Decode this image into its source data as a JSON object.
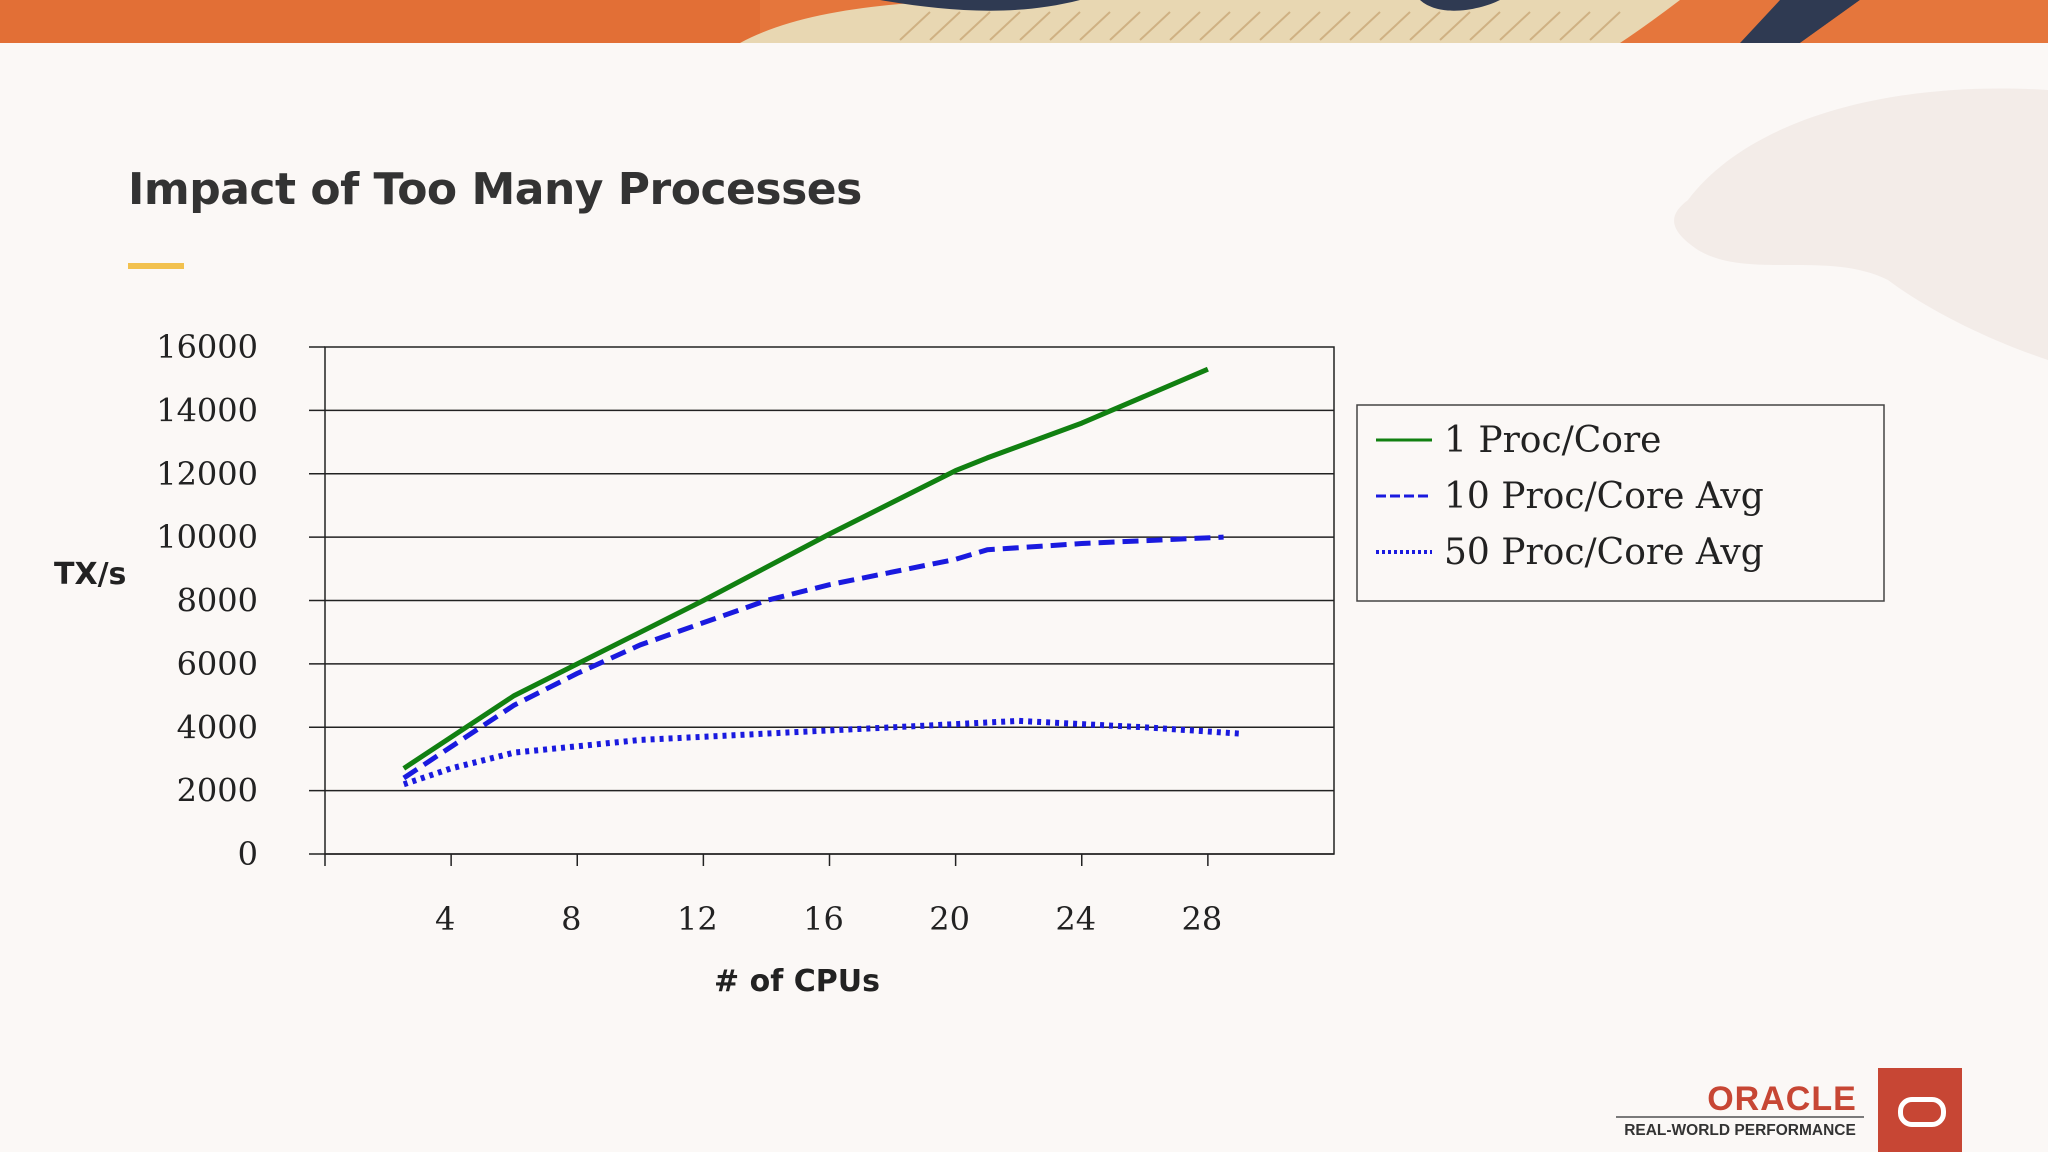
{
  "slide": {
    "title": "Impact of Too Many Processes"
  },
  "branding": {
    "logo_word": "ORACLE",
    "logo_sub": "REAL-WORLD PERFORMANCE",
    "logo_icon": "oracle-o-icon",
    "brand_color": "#c74634"
  },
  "colors": {
    "accent": "#f2c14e",
    "banner": "#e5763c",
    "green_series": "#118011",
    "blue_series": "#1a1adf"
  },
  "chart_data": {
    "type": "line",
    "xlabel": "# of CPUs",
    "ylabel": "TX/s",
    "xlim": [
      0,
      32
    ],
    "ylim": [
      0,
      16000
    ],
    "x_ticks": [
      4,
      8,
      12,
      16,
      20,
      24,
      28
    ],
    "y_ticks": [
      0,
      2000,
      4000,
      6000,
      8000,
      10000,
      12000,
      14000,
      16000
    ],
    "grid": "horizontal",
    "legend_position": "right",
    "series": [
      {
        "name": "1 Proc/Core",
        "style": "solid",
        "color": "#118011",
        "x": [
          2.5,
          6,
          8,
          12,
          16,
          20,
          21,
          24,
          28
        ],
        "y": [
          2700,
          5000,
          6000,
          8000,
          10100,
          12100,
          12500,
          13600,
          15300
        ]
      },
      {
        "name": "10 Proc/Core Avg",
        "style": "dashed",
        "color": "#1a1adf",
        "x": [
          2.5,
          6,
          8,
          10,
          14,
          16,
          20,
          21,
          24,
          28.5
        ],
        "y": [
          2400,
          4700,
          5700,
          6600,
          8000,
          8500,
          9300,
          9600,
          9800,
          10000
        ]
      },
      {
        "name": "50 Proc/Core Avg",
        "style": "dotted",
        "color": "#1a1adf",
        "x": [
          2.5,
          4,
          6,
          8,
          10,
          12,
          14,
          16,
          18,
          20,
          22,
          24,
          26,
          29
        ],
        "y": [
          2200,
          2700,
          3200,
          3400,
          3600,
          3700,
          3800,
          3900,
          4000,
          4100,
          4200,
          4100,
          4000,
          3800
        ]
      }
    ]
  }
}
